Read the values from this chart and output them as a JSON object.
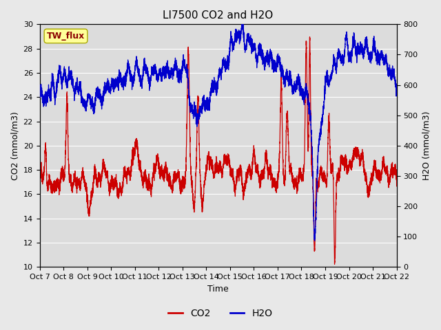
{
  "title": "LI7500 CO2 and H2O",
  "xlabel": "Time",
  "ylabel_left": "CO2 (mmol/m3)",
  "ylabel_right": "H2O (mmol/m3)",
  "ylim_left": [
    10,
    30
  ],
  "ylim_right": [
    0,
    800
  ],
  "yticks_left": [
    10,
    12,
    14,
    16,
    18,
    20,
    22,
    24,
    26,
    28,
    30
  ],
  "yticks_right": [
    0,
    100,
    200,
    300,
    400,
    500,
    600,
    700,
    800
  ],
  "xtick_labels": [
    "Oct 7",
    "Oct 8",
    "Oct 9",
    "Oct 10",
    "Oct 11",
    "Oct 12",
    "Oct 13",
    "Oct 14",
    "Oct 15",
    "Oct 16",
    "Oct 17",
    "Oct 18",
    "Oct 19",
    "Oct 20",
    "Oct 21",
    "Oct 22"
  ],
  "legend_label_co2": "CO2",
  "legend_label_h2o": "H2O",
  "co2_color": "#cc0000",
  "h2o_color": "#0000cc",
  "text_label": "TW_flux",
  "text_label_color": "#8b0000",
  "text_label_bg": "#ffff99",
  "bg_color": "#e8e8e8",
  "plot_bg_color": "#dcdcdc",
  "grid_color": "#ffffff",
  "title_fontsize": 11,
  "axis_fontsize": 9,
  "tick_fontsize": 8,
  "legend_fontsize": 10
}
